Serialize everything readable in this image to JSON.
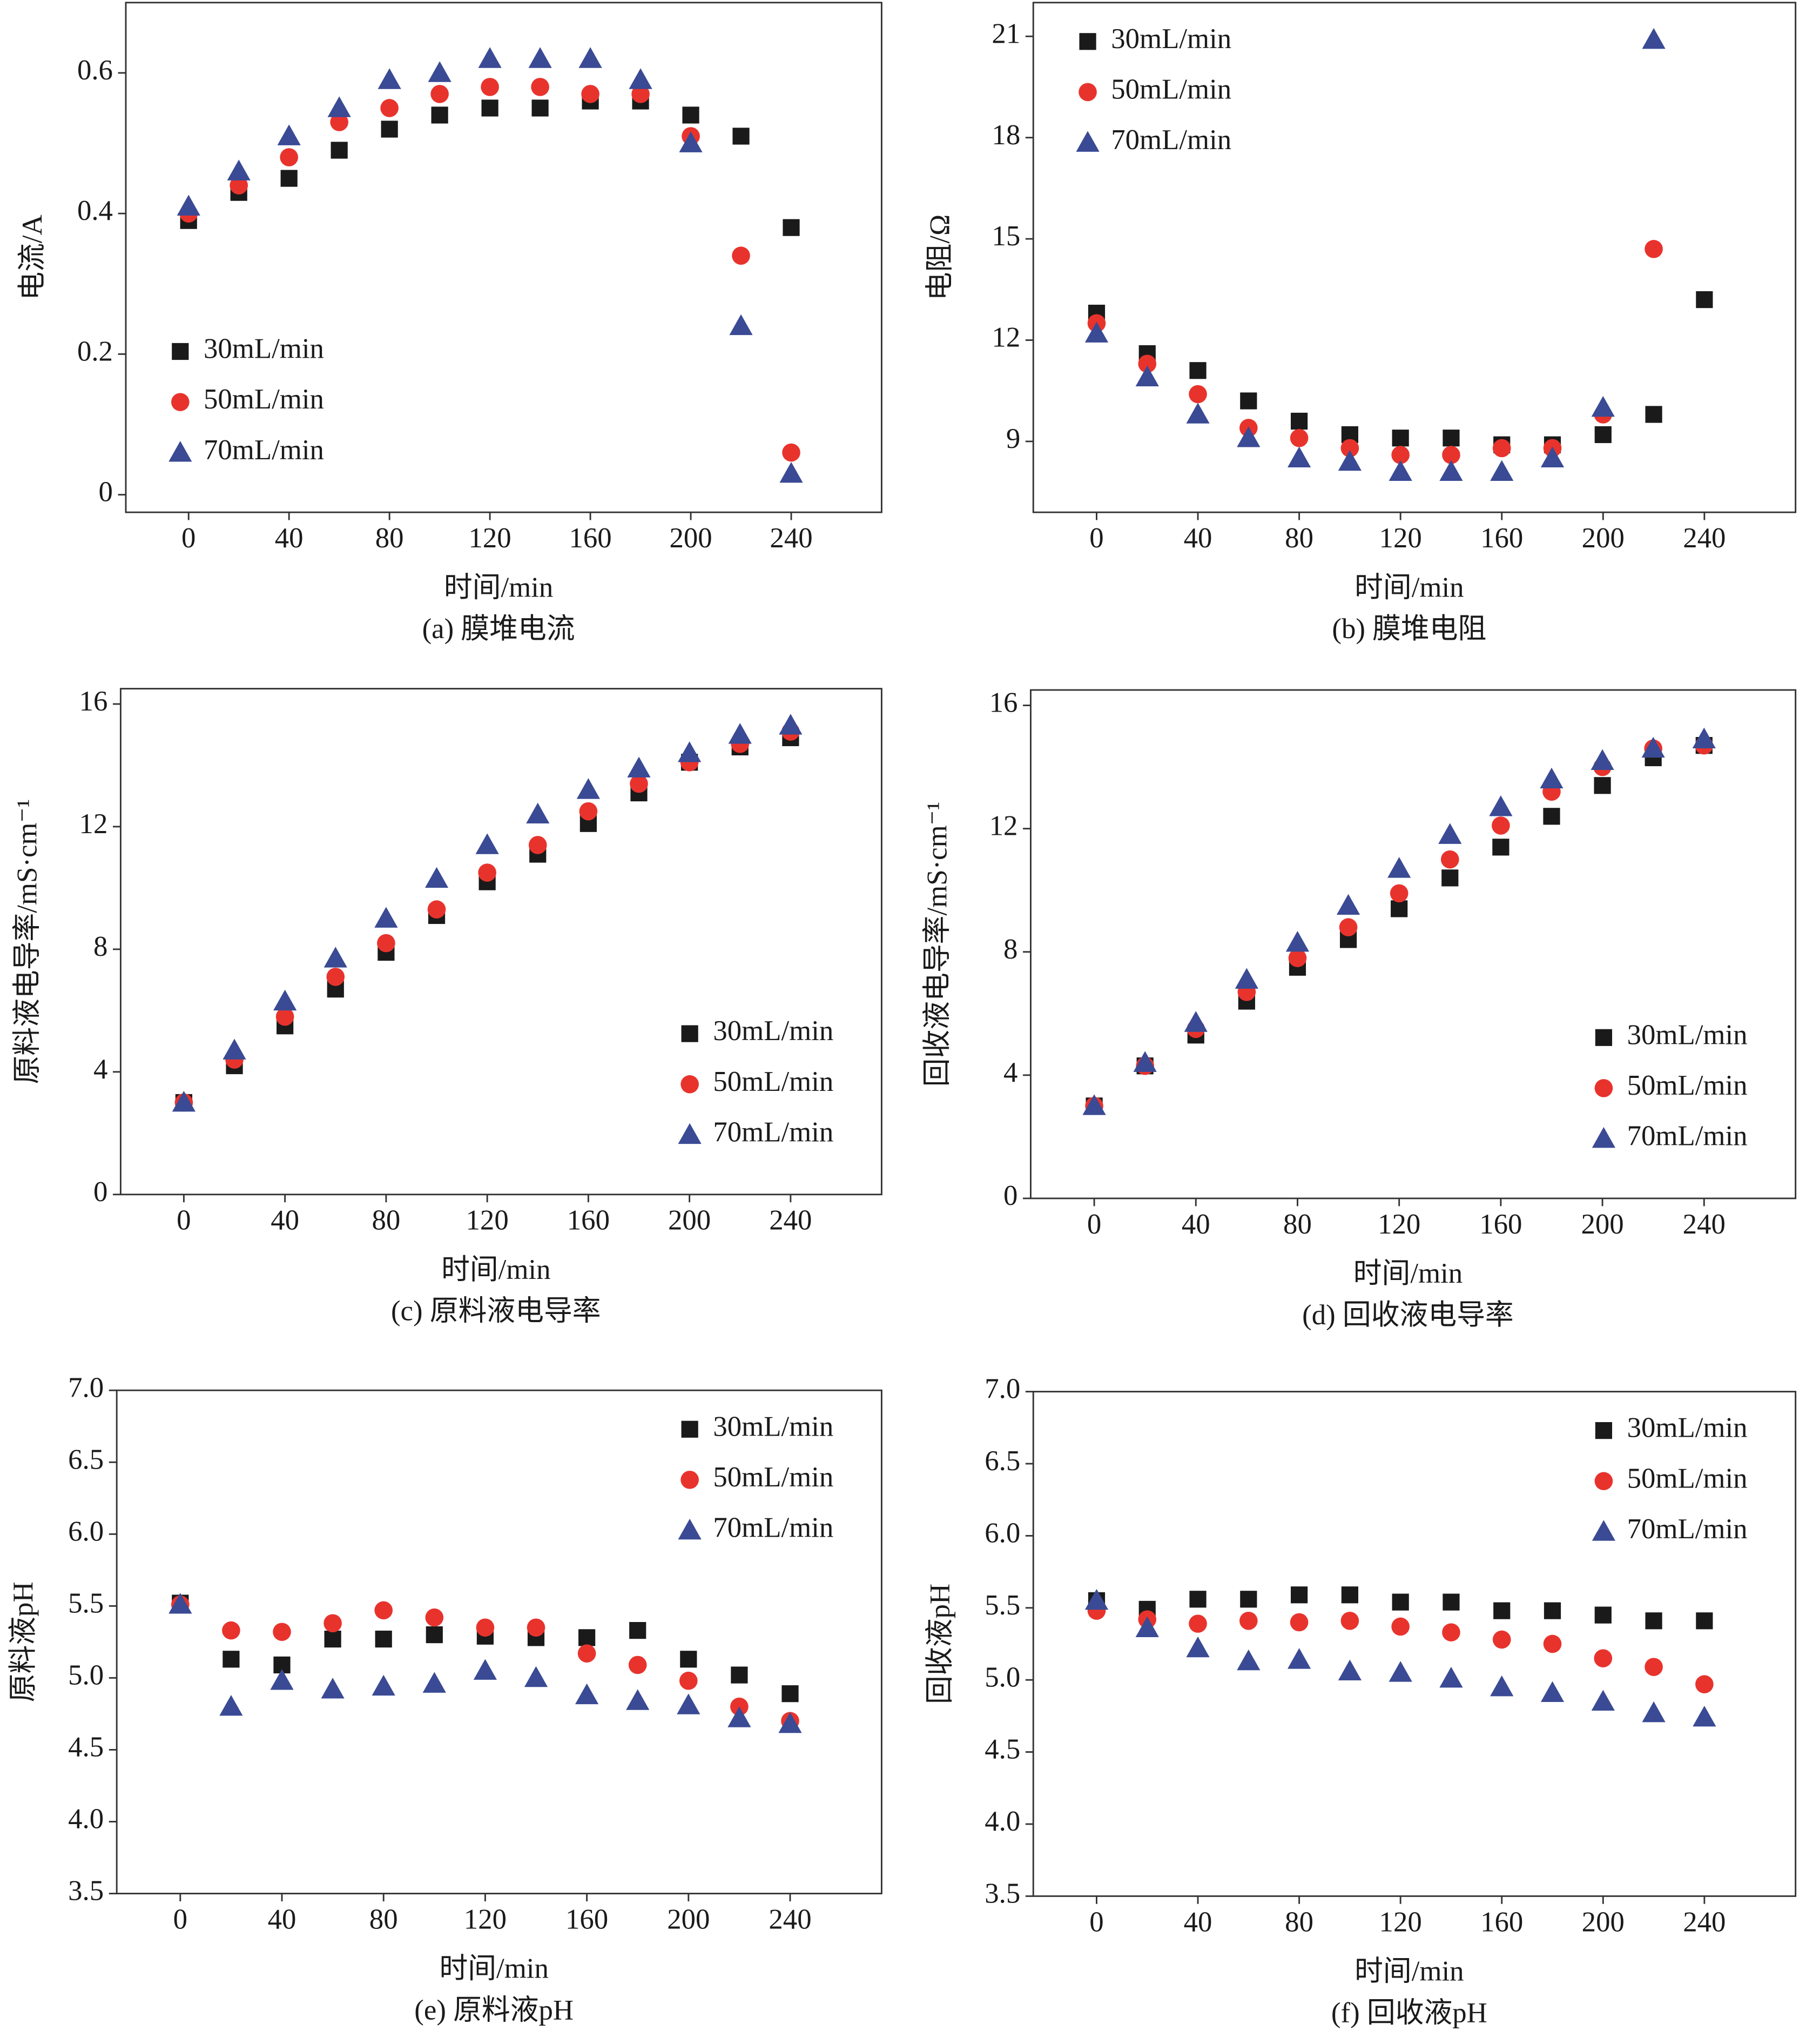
{
  "chart_data": [
    {
      "type": "scatter",
      "title": "(a) 膜堆电流",
      "xlabel": "时间/min",
      "ylabel": "电流/A",
      "x": [
        0,
        20,
        40,
        60,
        80,
        100,
        120,
        140,
        160,
        180,
        200,
        220,
        240
      ],
      "xlim": [
        -25,
        276
      ],
      "xticks": [
        0,
        40,
        80,
        120,
        160,
        200,
        240
      ],
      "ylim": [
        -0.025,
        0.7
      ],
      "yticks": [
        0,
        0.2,
        0.4,
        0.6
      ],
      "legend": "lower left",
      "series": [
        {
          "name": "30mL/min",
          "color": "#1a1a1a",
          "marker": "square",
          "values": [
            0.39,
            0.43,
            0.45,
            0.49,
            0.52,
            0.54,
            0.55,
            0.55,
            0.56,
            0.56,
            0.54,
            0.51,
            0.38
          ]
        },
        {
          "name": "50mL/min",
          "color": "#e8332d",
          "marker": "circle",
          "values": [
            0.4,
            0.44,
            0.48,
            0.53,
            0.55,
            0.57,
            0.58,
            0.58,
            0.57,
            0.57,
            0.51,
            0.34,
            0.06
          ]
        },
        {
          "name": "70mL/min",
          "color": "#3a4a94",
          "marker": "triangle",
          "values": [
            0.41,
            0.46,
            0.51,
            0.55,
            0.59,
            0.6,
            0.62,
            0.62,
            0.62,
            0.59,
            0.5,
            0.24,
            0.03
          ]
        }
      ]
    },
    {
      "type": "scatter",
      "title": "(b) 膜堆电阻",
      "xlabel": "时间/min",
      "ylabel": "电阻/Ω",
      "x": [
        0,
        20,
        40,
        60,
        80,
        100,
        120,
        140,
        160,
        180,
        200,
        220,
        240
      ],
      "xlim": [
        -25,
        276
      ],
      "xticks": [
        0,
        40,
        80,
        120,
        160,
        200,
        240
      ],
      "ylim": [
        6.9,
        22
      ],
      "yticks": [
        9,
        12,
        15,
        18,
        21
      ],
      "legend": "upper left",
      "series": [
        {
          "name": "30mL/min",
          "color": "#1a1a1a",
          "marker": "square",
          "values": [
            12.8,
            11.6,
            11.1,
            10.2,
            9.6,
            9.2,
            9.1,
            9.1,
            8.9,
            8.9,
            9.2,
            9.8,
            13.2
          ]
        },
        {
          "name": "50mL/min",
          "color": "#e8332d",
          "marker": "circle",
          "values": [
            12.5,
            11.3,
            10.4,
            9.4,
            9.1,
            8.8,
            8.6,
            8.6,
            8.8,
            8.8,
            9.8,
            14.7,
            null
          ]
        },
        {
          "name": "70mL/min",
          "color": "#3a4a94",
          "marker": "triangle",
          "values": [
            12.2,
            10.9,
            9.8,
            9.1,
            8.5,
            8.4,
            8.1,
            8.1,
            8.1,
            8.5,
            10.0,
            20.9,
            null
          ]
        }
      ]
    },
    {
      "type": "scatter",
      "title": "(c) 原料液电导率",
      "xlabel": "时间/min",
      "ylabel": "原料液电导率/mS·cm⁻¹",
      "x": [
        0,
        20,
        40,
        60,
        80,
        100,
        120,
        140,
        160,
        180,
        200,
        220,
        240
      ],
      "xlim": [
        -25,
        276
      ],
      "xticks": [
        0,
        40,
        80,
        120,
        160,
        200,
        240
      ],
      "ylim": [
        0,
        16.5
      ],
      "yticks": [
        0,
        4,
        8,
        12,
        16
      ],
      "legend": "lower right",
      "series": [
        {
          "name": "30mL/min",
          "color": "#1a1a1a",
          "marker": "square",
          "values": [
            3.0,
            4.2,
            5.5,
            6.7,
            7.9,
            9.1,
            10.2,
            11.1,
            12.1,
            13.1,
            14.1,
            14.6,
            14.9
          ]
        },
        {
          "name": "50mL/min",
          "color": "#e8332d",
          "marker": "circle",
          "values": [
            3.0,
            4.4,
            5.8,
            7.1,
            8.2,
            9.3,
            10.5,
            11.4,
            12.5,
            13.4,
            14.1,
            14.7,
            15.1
          ]
        },
        {
          "name": "70mL/min",
          "color": "#3a4a94",
          "marker": "triangle",
          "values": [
            3.0,
            4.7,
            6.3,
            7.7,
            9.0,
            10.3,
            11.4,
            12.4,
            13.2,
            13.9,
            14.4,
            15.0,
            15.3
          ]
        }
      ]
    },
    {
      "type": "scatter",
      "title": "(d) 回收液电导率",
      "xlabel": "时间/min",
      "ylabel": "回收液电导率/mS·cm⁻¹",
      "x": [
        0,
        20,
        40,
        60,
        80,
        100,
        120,
        140,
        160,
        180,
        200,
        220,
        240
      ],
      "xlim": [
        -25,
        276
      ],
      "xticks": [
        0,
        40,
        80,
        120,
        160,
        200,
        240
      ],
      "ylim": [
        0,
        16.5
      ],
      "yticks": [
        0,
        4,
        8,
        12,
        16
      ],
      "legend": "lower right",
      "series": [
        {
          "name": "30mL/min",
          "color": "#1a1a1a",
          "marker": "square",
          "values": [
            3.0,
            4.3,
            5.3,
            6.4,
            7.5,
            8.4,
            9.4,
            10.4,
            11.4,
            12.4,
            13.4,
            14.3,
            14.7
          ]
        },
        {
          "name": "50mL/min",
          "color": "#e8332d",
          "marker": "circle",
          "values": [
            3.0,
            4.3,
            5.5,
            6.7,
            7.8,
            8.8,
            9.9,
            11.0,
            12.1,
            13.2,
            14.0,
            14.6,
            14.7
          ]
        },
        {
          "name": "70mL/min",
          "color": "#3a4a94",
          "marker": "triangle",
          "values": [
            3.0,
            4.4,
            5.7,
            7.1,
            8.3,
            9.5,
            10.7,
            11.8,
            12.7,
            13.6,
            14.2,
            14.6,
            14.9
          ]
        }
      ]
    },
    {
      "type": "scatter",
      "title": "(e) 原料液pH",
      "xlabel": "时间/min",
      "ylabel": "原料液pH",
      "x": [
        0,
        20,
        40,
        60,
        80,
        100,
        120,
        140,
        160,
        180,
        200,
        220,
        240
      ],
      "xlim": [
        -25,
        276
      ],
      "xticks": [
        0,
        40,
        80,
        120,
        160,
        200,
        240
      ],
      "ylim": [
        3.5,
        7.0
      ],
      "yticks": [
        {
          "value": 3.5,
          "label": "3.5"
        },
        {
          "value": 4,
          "label": "4.0"
        },
        {
          "value": 4.5,
          "label": "4.5"
        },
        {
          "value": 5,
          "label": "5.0"
        },
        {
          "value": 5.5,
          "label": "5.5"
        },
        {
          "value": 6,
          "label": "6.0"
        },
        {
          "value": 6.5,
          "label": "6.5"
        },
        {
          "value": 7,
          "label": "7.0"
        }
      ],
      "legend": "upper right",
      "series": [
        {
          "name": "30mL/min",
          "color": "#1a1a1a",
          "marker": "square",
          "values": [
            5.52,
            5.13,
            5.09,
            5.27,
            5.27,
            5.3,
            5.29,
            5.28,
            5.28,
            5.33,
            5.13,
            5.02,
            4.89
          ]
        },
        {
          "name": "50mL/min",
          "color": "#e8332d",
          "marker": "circle",
          "values": [
            5.51,
            5.33,
            5.32,
            5.38,
            5.47,
            5.42,
            5.35,
            5.35,
            5.17,
            5.09,
            4.98,
            4.8,
            4.7
          ]
        },
        {
          "name": "70mL/min",
          "color": "#3a4a94",
          "marker": "triangle",
          "values": [
            5.51,
            4.8,
            4.98,
            4.92,
            4.94,
            4.96,
            5.05,
            5.0,
            4.88,
            4.84,
            4.81,
            4.72,
            4.68
          ]
        }
      ]
    },
    {
      "type": "scatter",
      "title": "(f) 回收液pH",
      "xlabel": "时间/min",
      "ylabel": "回收液pH",
      "x": [
        0,
        20,
        40,
        60,
        80,
        100,
        120,
        140,
        160,
        180,
        200,
        220,
        240
      ],
      "xlim": [
        -25,
        276
      ],
      "xticks": [
        0,
        40,
        80,
        120,
        160,
        200,
        240
      ],
      "ylim": [
        3.5,
        7.0
      ],
      "yticks": [
        {
          "value": 3.5,
          "label": "3.5"
        },
        {
          "value": 4,
          "label": "4.0"
        },
        {
          "value": 4.5,
          "label": "4.5"
        },
        {
          "value": 5,
          "label": "5.0"
        },
        {
          "value": 5.5,
          "label": "5.5"
        },
        {
          "value": 6,
          "label": "6.0"
        },
        {
          "value": 6.5,
          "label": "6.5"
        },
        {
          "value": 7,
          "label": "7.0"
        }
      ],
      "legend": "upper right",
      "series": [
        {
          "name": "30mL/min",
          "color": "#1a1a1a",
          "marker": "square",
          "values": [
            5.55,
            5.49,
            5.56,
            5.56,
            5.59,
            5.59,
            5.54,
            5.54,
            5.48,
            5.48,
            5.45,
            5.41,
            5.41
          ]
        },
        {
          "name": "50mL/min",
          "color": "#e8332d",
          "marker": "circle",
          "values": [
            5.48,
            5.42,
            5.39,
            5.41,
            5.4,
            5.41,
            5.37,
            5.33,
            5.28,
            5.25,
            5.15,
            5.09,
            4.97
          ]
        },
        {
          "name": "70mL/min",
          "color": "#3a4a94",
          "marker": "triangle",
          "values": [
            5.55,
            5.36,
            5.22,
            5.13,
            5.14,
            5.06,
            5.05,
            5.01,
            4.95,
            4.91,
            4.85,
            4.77,
            4.74
          ]
        }
      ]
    }
  ]
}
